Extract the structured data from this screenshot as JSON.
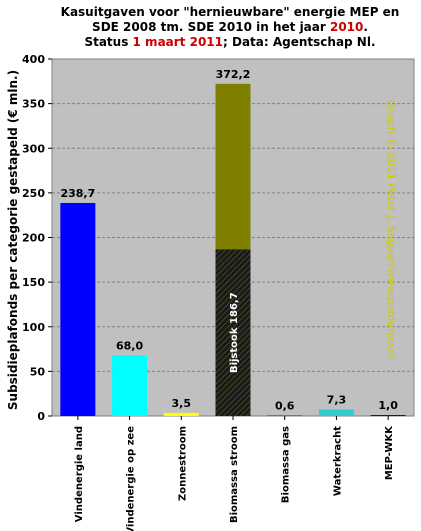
{
  "chart_data": {
    "type": "bar",
    "title": {
      "line1": "Kasuitgaven voor \"hernieuwbare\" energie MEP en",
      "line2_prefix": "SDE 2008 tm. SDE 2010 in het jaar ",
      "line2_year": "2010",
      "line2_suffix": ".",
      "line3_prefix": "Status ",
      "line3_date": "1 maart 2011",
      "line3_suffix": "; Data: Agentschap Nl."
    },
    "ylabel": "Subsidieplafonds per categorie gestapeld (€ mln.)",
    "xlabel": "",
    "ylim": [
      0,
      400
    ],
    "yticks": [
      "0",
      "50",
      "100",
      "150",
      "200",
      "250",
      "300",
      "350",
      "400"
    ],
    "grid": true,
    "categories": [
      "Vindenergie land",
      "Vindenergie op zee",
      "Zonnestroom",
      "Biomassa stroom",
      "Biomassa gas",
      "Waterkracht",
      "MEP-WKK"
    ],
    "values": [
      238.7,
      68.0,
      3.5,
      372.2,
      0.6,
      7.3,
      1.0
    ],
    "value_labels": [
      "238,7",
      "68,0",
      "3,5",
      "372,2",
      "0,6",
      "7,3",
      "1,0"
    ],
    "colors": [
      "#0000ff",
      "#00ffff",
      "#ffff00",
      "#808000",
      "#800080",
      "#33cccc",
      "#000080"
    ],
    "stacked_segment": {
      "category": "Biomassa stroom",
      "value": 186.7,
      "label": "Bijstook 186,7",
      "pattern": "black-diagonal-hatch"
    },
    "watermark": "Graph © 2011 Peter J. Segaar/www.polderpv.nl",
    "colors_ui": {
      "plot_background": "#c0c0c0",
      "gridline": "#808080",
      "title_highlight": "#cc0000",
      "watermark": "#cccc00"
    }
  }
}
